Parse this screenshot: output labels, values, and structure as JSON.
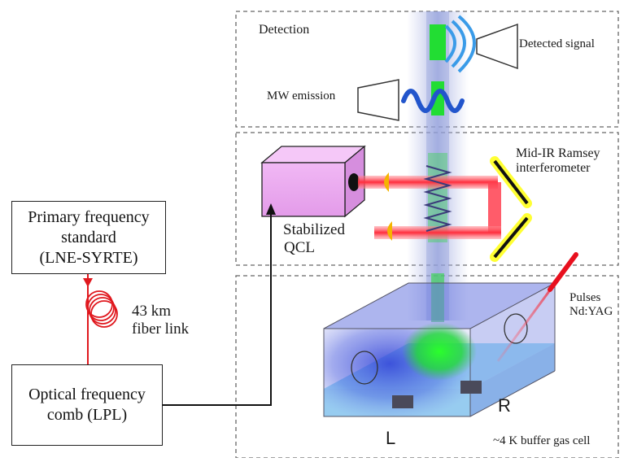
{
  "primary_standard": {
    "line1": "Primary frequency",
    "line2": "standard",
    "line3": "(LNE-SYRTE)"
  },
  "fiber_link": {
    "line1": "43 km",
    "line2": "fiber link"
  },
  "comb": {
    "line1": "Optical frequency",
    "line2": "comb  (LPL)"
  },
  "detection_section": {
    "title": "Detection",
    "detected_signal": "Detected signal",
    "mw_emission": "MW emission"
  },
  "ramsey_section": {
    "qcl_line1": "Stabilized",
    "qcl_line2": "QCL",
    "ramsey_line1": "Mid-IR Ramsey",
    "ramsey_line2": "interferometer"
  },
  "cell_section": {
    "pulses_line1": "Pulses",
    "pulses_line2": "Nd:YAG",
    "cell_label": "~4 K buffer gas cell",
    "electrode_left": "L",
    "electrode_right": "R"
  },
  "colors": {
    "fiber": "#e0181e",
    "laser": "#ff3b4a",
    "molecules": "#22dd33",
    "qcl_box": "#e9a9ef",
    "cell": "#3a4fd8",
    "mirror_glow": "#ffff33"
  }
}
